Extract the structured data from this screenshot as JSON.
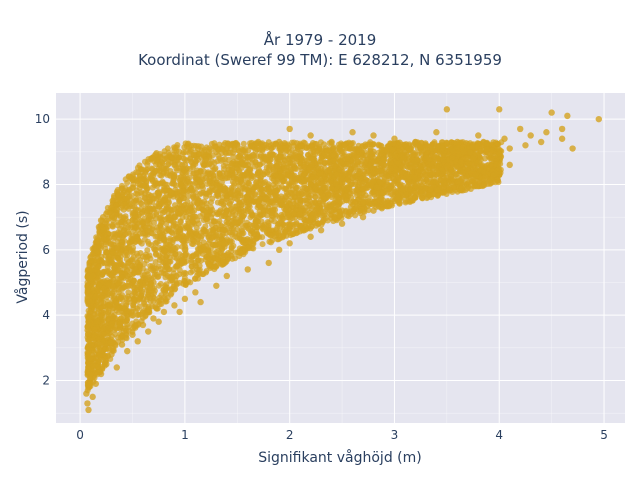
{
  "chart_data": {
    "type": "scatter",
    "title_lines": [
      "År 1979 - 2019",
      "Koordinat (Sweref 99 TM): E 628212, N 6351959"
    ],
    "xlabel": "Signifikant våghöjd (m)",
    "ylabel": "Vågperiod (s)",
    "xlim": [
      -0.23,
      5.2
    ],
    "ylim": [
      0.7,
      10.8
    ],
    "xticks": [
      0,
      1,
      2,
      3,
      4,
      5
    ],
    "yticks": [
      2,
      4,
      6,
      8,
      10
    ],
    "grid": true,
    "legend": "none",
    "colors": {
      "marker": "#d4a31f",
      "plot_bg": "#e5e5ef",
      "grid": "#ffffff",
      "text": "#2a3f5f"
    },
    "point_cloud_description": "dense cloud of hourly observations; period rises with wave height",
    "points": [
      [
        0.08,
        1.1
      ],
      [
        0.07,
        1.3
      ],
      [
        0.06,
        1.6
      ],
      [
        0.09,
        1.9
      ],
      [
        0.1,
        2.2
      ],
      [
        0.08,
        2.6
      ],
      [
        0.12,
        3.0
      ],
      [
        0.1,
        3.4
      ],
      [
        0.13,
        3.8
      ],
      [
        0.11,
        4.2
      ],
      [
        0.14,
        4.6
      ],
      [
        0.12,
        5.0
      ],
      [
        0.15,
        5.4
      ],
      [
        0.13,
        5.9
      ],
      [
        0.16,
        6.2
      ],
      [
        0.18,
        6.7
      ],
      [
        0.2,
        6.9
      ],
      [
        0.22,
        7.0
      ],
      [
        0.25,
        7.1
      ],
      [
        0.3,
        7.2
      ],
      [
        0.35,
        7.5
      ],
      [
        0.4,
        7.7
      ],
      [
        0.5,
        7.9
      ],
      [
        0.6,
        8.0
      ],
      [
        0.7,
        8.3
      ],
      [
        0.8,
        8.5
      ],
      [
        0.9,
        8.6
      ],
      [
        1.0,
        8.6
      ],
      [
        1.1,
        8.7
      ],
      [
        1.2,
        8.9
      ],
      [
        1.3,
        9.0
      ],
      [
        1.4,
        9.1
      ],
      [
        1.5,
        9.2
      ],
      [
        1.7,
        9.3
      ],
      [
        1.9,
        9.3
      ],
      [
        2.0,
        9.7
      ],
      [
        2.2,
        9.5
      ],
      [
        2.4,
        9.3
      ],
      [
        2.6,
        9.6
      ],
      [
        2.8,
        9.5
      ],
      [
        3.0,
        9.4
      ],
      [
        3.2,
        9.3
      ],
      [
        3.4,
        9.6
      ],
      [
        3.5,
        10.3
      ],
      [
        3.6,
        9.3
      ],
      [
        3.8,
        9.5
      ],
      [
        4.0,
        10.3
      ],
      [
        4.2,
        9.7
      ],
      [
        4.3,
        9.5
      ],
      [
        4.45,
        9.6
      ],
      [
        4.5,
        10.2
      ],
      [
        4.6,
        9.7
      ],
      [
        4.65,
        10.1
      ],
      [
        4.7,
        9.1
      ],
      [
        4.95,
        10.0
      ],
      [
        4.6,
        9.4
      ],
      [
        4.4,
        9.3
      ],
      [
        4.1,
        9.1
      ],
      [
        3.9,
        9.2
      ],
      [
        4.0,
        8.8
      ],
      [
        4.1,
        8.6
      ],
      [
        4.0,
        8.3
      ],
      [
        3.8,
        8.4
      ],
      [
        3.6,
        8.0
      ],
      [
        3.4,
        7.9
      ],
      [
        3.3,
        7.7
      ],
      [
        3.2,
        7.6
      ],
      [
        3.0,
        7.5
      ],
      [
        2.8,
        7.2
      ],
      [
        2.7,
        7.0
      ],
      [
        2.5,
        6.8
      ],
      [
        2.3,
        6.6
      ],
      [
        2.2,
        6.4
      ],
      [
        2.0,
        6.2
      ],
      [
        1.9,
        6.0
      ],
      [
        1.8,
        5.6
      ],
      [
        1.6,
        5.4
      ],
      [
        1.4,
        5.2
      ],
      [
        1.3,
        4.9
      ],
      [
        1.1,
        4.7
      ],
      [
        1.0,
        4.5
      ],
      [
        0.9,
        4.3
      ],
      [
        0.8,
        4.1
      ],
      [
        0.7,
        3.9
      ],
      [
        0.6,
        3.7
      ],
      [
        0.5,
        3.4
      ],
      [
        0.4,
        3.1
      ],
      [
        0.3,
        2.8
      ],
      [
        0.25,
        2.5
      ],
      [
        0.2,
        2.2
      ],
      [
        0.15,
        1.9
      ],
      [
        0.12,
        1.5
      ],
      [
        0.3,
        4.0
      ],
      [
        0.35,
        5.0
      ],
      [
        0.4,
        6.0
      ],
      [
        0.5,
        5.5
      ],
      [
        0.6,
        6.5
      ],
      [
        0.7,
        5.0
      ],
      [
        0.8,
        6.0
      ],
      [
        0.9,
        7.0
      ],
      [
        1.0,
        6.0
      ],
      [
        1.2,
        6.5
      ],
      [
        1.4,
        7.2
      ],
      [
        1.5,
        6.8
      ],
      [
        1.6,
        7.5
      ],
      [
        1.8,
        7.8
      ],
      [
        2.0,
        7.4
      ],
      [
        2.2,
        8.0
      ],
      [
        2.4,
        7.8
      ],
      [
        2.6,
        8.2
      ],
      [
        2.8,
        8.0
      ],
      [
        3.0,
        8.4
      ],
      [
        3.2,
        8.6
      ],
      [
        3.4,
        8.5
      ],
      [
        3.6,
        8.8
      ],
      [
        3.8,
        8.9
      ],
      [
        4.0,
        9.0
      ],
      [
        1.2,
        8.2
      ],
      [
        1.6,
        8.6
      ],
      [
        2.0,
        8.8
      ],
      [
        2.4,
        9.0
      ],
      [
        2.8,
        9.0
      ],
      [
        0.6,
        4.5
      ],
      [
        0.45,
        4.0
      ],
      [
        0.55,
        6.8
      ],
      [
        0.75,
        7.4
      ],
      [
        1.0,
        7.8
      ],
      [
        1.3,
        8.0
      ],
      [
        1.7,
        7.0
      ],
      [
        2.1,
        7.0
      ],
      [
        2.5,
        7.2
      ],
      [
        2.9,
        8.6
      ],
      [
        3.3,
        8.9
      ],
      [
        3.7,
        9.0
      ],
      [
        0.2,
        3.5
      ],
      [
        0.25,
        4.8
      ],
      [
        0.28,
        5.8
      ],
      [
        0.33,
        6.4
      ],
      [
        0.38,
        3.6
      ],
      [
        0.45,
        5.2
      ],
      [
        0.65,
        4.2
      ],
      [
        0.85,
        5.4
      ],
      [
        1.1,
        5.6
      ],
      [
        1.35,
        6.0
      ],
      [
        1.55,
        6.3
      ],
      [
        1.75,
        6.7
      ],
      [
        1.95,
        7.1
      ],
      [
        2.15,
        7.3
      ],
      [
        2.35,
        7.6
      ],
      [
        2.55,
        7.9
      ],
      [
        2.75,
        8.1
      ],
      [
        2.95,
        8.2
      ],
      [
        3.15,
        8.1
      ],
      [
        3.35,
        8.3
      ],
      [
        3.55,
        8.6
      ],
      [
        3.75,
        8.7
      ],
      [
        3.95,
        8.5
      ],
      [
        0.18,
        2.8
      ],
      [
        0.22,
        3.2
      ],
      [
        0.27,
        4.3
      ],
      [
        0.32,
        5.3
      ],
      [
        0.42,
        6.6
      ],
      [
        0.52,
        7.3
      ],
      [
        0.62,
        7.6
      ],
      [
        0.72,
        6.2
      ],
      [
        0.82,
        4.8
      ],
      [
        0.92,
        5.2
      ],
      [
        1.05,
        7.3
      ],
      [
        1.15,
        8.4
      ],
      [
        1.25,
        7.0
      ],
      [
        1.45,
        8.3
      ],
      [
        1.65,
        8.9
      ],
      [
        1.85,
        8.4
      ],
      [
        2.05,
        8.5
      ],
      [
        2.25,
        8.6
      ],
      [
        2.45,
        8.4
      ],
      [
        2.65,
        8.7
      ],
      [
        2.85,
        8.8
      ],
      [
        3.05,
        9.0
      ],
      [
        3.25,
        9.1
      ],
      [
        3.45,
        9.2
      ],
      [
        3.65,
        9.1
      ],
      [
        3.85,
        9.3
      ],
      [
        4.05,
        9.4
      ],
      [
        4.25,
        9.2
      ],
      [
        0.35,
        2.4
      ],
      [
        0.45,
        2.9
      ],
      [
        0.55,
        3.2
      ],
      [
        0.65,
        3.5
      ],
      [
        0.75,
        3.8
      ],
      [
        0.95,
        4.1
      ],
      [
        1.15,
        4.4
      ]
    ]
  }
}
